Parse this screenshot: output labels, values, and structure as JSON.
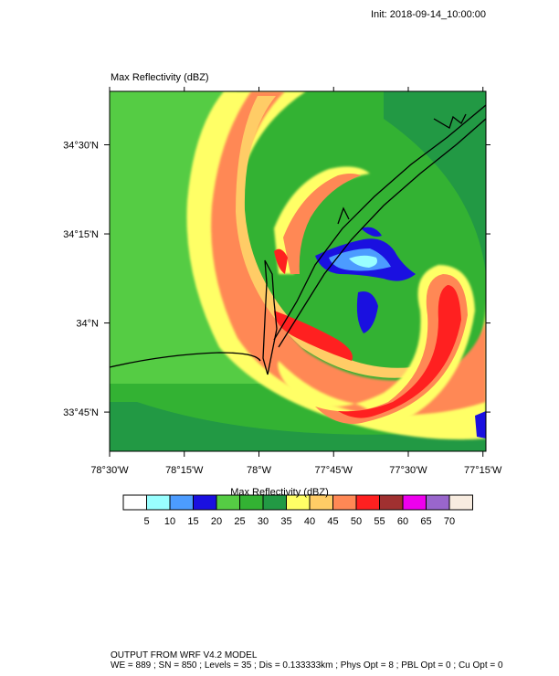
{
  "header": {
    "init_time": "Init: 2018-09-14_10:00:00",
    "plot_title": "Max Reflectivity   (dBZ)"
  },
  "colorbar": {
    "title": "Max Reflectivity  (dBZ)",
    "colors": [
      "#ffffff",
      "#99ffff",
      "#4c9cff",
      "#1a10e0",
      "#55cc44",
      "#33b233",
      "#229944",
      "#ffff66",
      "#ffcc66",
      "#ff8855",
      "#ff2020",
      "#a03030",
      "#ee00ee",
      "#9966cc",
      "#f8ece0"
    ],
    "labels": [
      "5",
      "10",
      "15",
      "20",
      "25",
      "30",
      "35",
      "40",
      "45",
      "50",
      "55",
      "60",
      "65",
      "70"
    ]
  },
  "chart_data": {
    "type": "heatmap",
    "title": "Max Reflectivity   (dBZ)",
    "variable": "Max Reflectivity",
    "units": "dBZ",
    "init_time": "2018-09-14_10:00:00",
    "x_ticks": [
      "78°30'W",
      "78°15'W",
      "78°W",
      "77°45'W",
      "77°30'W",
      "77°15'W"
    ],
    "x_tick_values": [
      -78.5,
      -78.25,
      -78.0,
      -77.75,
      -77.5,
      -77.25
    ],
    "y_ticks": [
      "34°30'N",
      "34°15'N",
      "34°N",
      "33°45'N"
    ],
    "y_tick_values": [
      34.5,
      34.25,
      34.0,
      33.75
    ],
    "xlim": [
      -78.5,
      -77.24
    ],
    "ylim": [
      33.64,
      34.65
    ],
    "levels": [
      5,
      10,
      15,
      20,
      25,
      30,
      35,
      40,
      45,
      50,
      55,
      60,
      65,
      70
    ],
    "grid": false,
    "legend": "colorbar-bottom"
  },
  "footer": {
    "line1": "OUTPUT FROM WRF V4.2 MODEL",
    "line2": "WE = 889 ; SN = 850 ; Levels = 35 ; Dis = 0.133333km ; Phys Opt = 8 ; PBL Opt = 0 ; Cu Opt = 0"
  }
}
